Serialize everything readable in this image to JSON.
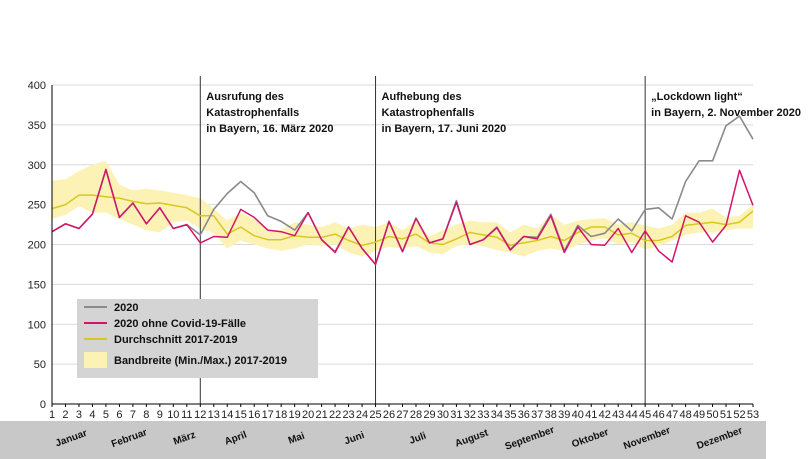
{
  "chart_data": {
    "type": "line",
    "xlabel": "",
    "ylabel": "",
    "xlim": [
      1,
      53
    ],
    "ylim": [
      0,
      400
    ],
    "yticks": [
      0,
      50,
      100,
      150,
      200,
      250,
      300,
      350,
      400
    ],
    "x": [
      1,
      2,
      3,
      4,
      5,
      6,
      7,
      8,
      9,
      10,
      11,
      12,
      13,
      14,
      15,
      16,
      17,
      18,
      19,
      20,
      21,
      22,
      23,
      24,
      25,
      26,
      27,
      28,
      29,
      30,
      31,
      32,
      33,
      34,
      35,
      36,
      37,
      38,
      39,
      40,
      41,
      42,
      43,
      44,
      45,
      46,
      47,
      48,
      49,
      50,
      51,
      52,
      53
    ],
    "series": [
      {
        "name": "2020",
        "color": "#8a8a8a",
        "values": [
          216,
          226,
          220,
          238,
          294,
          234,
          252,
          226,
          246,
          220,
          225,
          212,
          244,
          264,
          279,
          265,
          236,
          229,
          218,
          240,
          206,
          191,
          222,
          195,
          175,
          229,
          191,
          233,
          202,
          207,
          255,
          200,
          206,
          222,
          194,
          210,
          209,
          238,
          192,
          224,
          210,
          214,
          232,
          217,
          244,
          246,
          232,
          279,
          305,
          305,
          349,
          361,
          332
        ]
      },
      {
        "name": "2020 ohne Covid-19-Fälle",
        "color": "#d4146a",
        "values": [
          216,
          226,
          220,
          238,
          294,
          234,
          252,
          226,
          246,
          220,
          225,
          202,
          210,
          209,
          244,
          234,
          218,
          216,
          211,
          240,
          206,
          190,
          222,
          195,
          175,
          229,
          191,
          233,
          202,
          207,
          253,
          200,
          206,
          221,
          193,
          210,
          207,
          236,
          190,
          222,
          200,
          199,
          220,
          190,
          217,
          192,
          178,
          236,
          228,
          203,
          224,
          293,
          249
        ]
      },
      {
        "name": "Durchschnitt 2017-2019",
        "color": "#d8c81e",
        "values": [
          245,
          250,
          262,
          262,
          260,
          258,
          254,
          251,
          252,
          249,
          246,
          236,
          236,
          213,
          222,
          211,
          206,
          206,
          211,
          209,
          209,
          213,
          205,
          199,
          203,
          210,
          207,
          213,
          202,
          200,
          207,
          215,
          212,
          209,
          199,
          202,
          205,
          210,
          205,
          215,
          222,
          222,
          212,
          214,
          205,
          205,
          210,
          224,
          226,
          228,
          225,
          228,
          242
        ]
      },
      {
        "name": "Bandbreite (Min./Max.) 2017-2019",
        "type": "band",
        "color": "#fcf2b6",
        "lower": [
          232,
          237,
          248,
          240,
          240,
          232,
          225,
          218,
          215,
          228,
          230,
          220,
          214,
          195,
          205,
          200,
          195,
          192,
          195,
          200,
          198,
          200,
          190,
          185,
          192,
          197,
          195,
          198,
          190,
          188,
          198,
          200,
          198,
          193,
          190,
          185,
          192,
          195,
          192,
          200,
          205,
          208,
          200,
          203,
          194,
          198,
          205,
          212,
          215,
          215,
          218,
          220,
          220
        ],
        "upper": [
          280,
          282,
          292,
          300,
          305,
          275,
          268,
          270,
          268,
          265,
          262,
          258,
          245,
          230,
          240,
          232,
          218,
          218,
          228,
          225,
          222,
          228,
          220,
          225,
          222,
          228,
          218,
          230,
          210,
          218,
          225,
          230,
          228,
          228,
          215,
          225,
          220,
          238,
          225,
          230,
          232,
          233,
          225,
          228,
          224,
          220,
          225,
          240,
          240,
          245,
          234,
          236,
          250
        ]
      }
    ],
    "xticks": [
      1,
      2,
      3,
      4,
      5,
      6,
      7,
      8,
      9,
      10,
      11,
      12,
      13,
      14,
      15,
      16,
      17,
      18,
      19,
      20,
      21,
      22,
      23,
      24,
      25,
      26,
      27,
      28,
      29,
      30,
      31,
      32,
      33,
      34,
      35,
      36,
      37,
      38,
      39,
      40,
      41,
      42,
      43,
      44,
      45,
      46,
      47,
      48,
      49,
      50,
      51,
      52,
      53
    ],
    "months": [
      {
        "label": "Januar",
        "week": 2.5
      },
      {
        "label": "Februar",
        "week": 6.8
      },
      {
        "label": "März",
        "week": 10.9
      },
      {
        "label": "April",
        "week": 14.7
      },
      {
        "label": "Mai",
        "week": 19.2
      },
      {
        "label": "Juni",
        "week": 23.5
      },
      {
        "label": "Juli",
        "week": 28.2
      },
      {
        "label": "August",
        "week": 32.2
      },
      {
        "label": "September",
        "week": 36.5
      },
      {
        "label": "Oktober",
        "week": 41.0
      },
      {
        "label": "November",
        "week": 45.2
      },
      {
        "label": "Dezember",
        "week": 50.6
      }
    ],
    "annotations": [
      {
        "week": 12,
        "lines": [
          "Ausrufung des",
          "Katastrophenfalls",
          "in Bayern, 16. März 2020"
        ]
      },
      {
        "week": 25,
        "lines": [
          "Aufhebung des",
          "Katastrophenfalls",
          "in Bayern, 17. Juni 2020"
        ]
      },
      {
        "week": 45,
        "lines": [
          "„Lockdown light“",
          "in Bayern, 2. November 2020"
        ]
      }
    ],
    "legend": {
      "position": "bottom-left",
      "items": [
        {
          "label": "2020",
          "kind": "line",
          "color": "#8a8a8a"
        },
        {
          "label": "2020 ohne Covid-19-Fälle",
          "kind": "line",
          "color": "#d4146a"
        },
        {
          "label": "Durchschnitt 2017-2019",
          "kind": "line",
          "color": "#d8c81e"
        },
        {
          "label": "Bandbreite (Min./Max.) 2017-2019",
          "kind": "box",
          "color": "#fcf2b6"
        }
      ]
    },
    "colors": {
      "legend_bg": "#d4d4d4",
      "month_strip": "#c8c8c8",
      "grid": "#d9d9d9",
      "marker_line": "#333333"
    }
  }
}
